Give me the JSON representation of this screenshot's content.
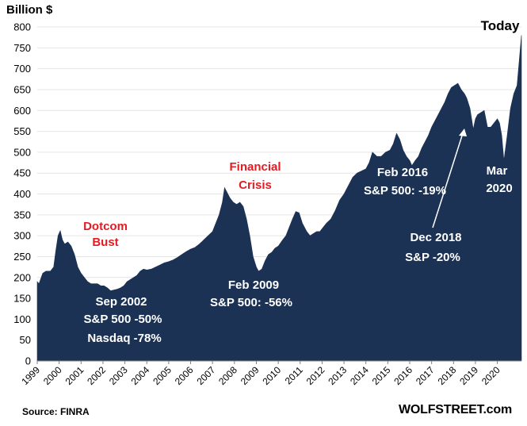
{
  "unit_label": "Billion $",
  "source": "Source: FINRA",
  "brand": "WOLFSTREET.com",
  "colors": {
    "area": "#1b3255",
    "grid": "#e4e4e4",
    "red": "#e31b23",
    "white": "#ffffff",
    "black": "#000000"
  },
  "chart_data": {
    "type": "area",
    "title": "",
    "xlabel": "",
    "ylabel": "Billion $",
    "ylim": [
      0,
      800
    ],
    "yticks": [
      0,
      50,
      100,
      150,
      200,
      250,
      300,
      350,
      400,
      450,
      500,
      550,
      600,
      650,
      700,
      750,
      800
    ],
    "xlim": [
      1999.0,
      2021.1
    ],
    "xticks": [
      "1999",
      "2000",
      "2001",
      "2002",
      "2003",
      "2004",
      "2005",
      "2006",
      "2007",
      "2008",
      "2009",
      "2010",
      "2011",
      "2012",
      "2013",
      "2014",
      "2015",
      "2016",
      "2017",
      "2018",
      "2019",
      "2020"
    ],
    "grid": true,
    "series": [
      {
        "name": "",
        "x": [
          1999.0,
          1999.08,
          1999.25,
          1999.4,
          1999.6,
          1999.75,
          1999.85,
          1999.95,
          2000.05,
          2000.15,
          2000.25,
          2000.4,
          2000.55,
          2000.7,
          2000.85,
          2001.0,
          2001.15,
          2001.3,
          2001.45,
          2001.6,
          2001.75,
          2001.9,
          2002.05,
          2002.2,
          2002.35,
          2002.5,
          2002.65,
          2002.8,
          2002.95,
          2003.1,
          2003.25,
          2003.4,
          2003.55,
          2003.7,
          2003.85,
          2004.0,
          2004.2,
          2004.4,
          2004.6,
          2004.8,
          2005.0,
          2005.2,
          2005.4,
          2005.6,
          2005.8,
          2006.0,
          2006.2,
          2006.4,
          2006.6,
          2006.8,
          2007.0,
          2007.15,
          2007.3,
          2007.45,
          2007.55,
          2007.65,
          2007.8,
          2007.95,
          2008.1,
          2008.25,
          2008.4,
          2008.55,
          2008.7,
          2008.85,
          2009.0,
          2009.1,
          2009.25,
          2009.4,
          2009.55,
          2009.7,
          2009.85,
          2010.0,
          2010.2,
          2010.35,
          2010.5,
          2010.65,
          2010.8,
          2010.95,
          2011.1,
          2011.3,
          2011.45,
          2011.6,
          2011.75,
          2011.9,
          2012.05,
          2012.2,
          2012.4,
          2012.6,
          2012.8,
          2013.0,
          2013.2,
          2013.4,
          2013.6,
          2013.8,
          2014.0,
          2014.15,
          2014.3,
          2014.5,
          2014.7,
          2014.9,
          2015.1,
          2015.25,
          2015.4,
          2015.55,
          2015.7,
          2015.85,
          2016.0,
          2016.1,
          2016.25,
          2016.4,
          2016.55,
          2016.7,
          2016.85,
          2017.0,
          2017.15,
          2017.3,
          2017.45,
          2017.6,
          2017.75,
          2017.9,
          2018.05,
          2018.2,
          2018.35,
          2018.5,
          2018.6,
          2018.75,
          2018.9,
          2019.0,
          2019.1,
          2019.25,
          2019.4,
          2019.55,
          2019.7,
          2019.85,
          2020.0,
          2020.1,
          2020.2,
          2020.3,
          2020.45,
          2020.6,
          2020.75,
          2020.9,
          2021.0,
          2021.1
        ],
        "values": [
          190,
          185,
          210,
          215,
          215,
          225,
          265,
          300,
          312,
          290,
          280,
          285,
          275,
          255,
          225,
          210,
          200,
          190,
          185,
          185,
          185,
          180,
          180,
          175,
          168,
          170,
          172,
          175,
          180,
          190,
          195,
          200,
          205,
          215,
          220,
          218,
          220,
          225,
          230,
          235,
          238,
          242,
          248,
          255,
          262,
          268,
          272,
          280,
          290,
          300,
          310,
          330,
          350,
          380,
          415,
          405,
          390,
          380,
          375,
          380,
          370,
          340,
          300,
          250,
          225,
          215,
          220,
          240,
          255,
          260,
          270,
          275,
          290,
          300,
          320,
          340,
          358,
          355,
          330,
          310,
          300,
          305,
          310,
          310,
          320,
          330,
          340,
          360,
          385,
          400,
          420,
          440,
          450,
          455,
          460,
          475,
          500,
          490,
          490,
          500,
          505,
          520,
          545,
          530,
          505,
          490,
          480,
          468,
          480,
          490,
          510,
          525,
          540,
          560,
          575,
          590,
          605,
          620,
          640,
          655,
          660,
          665,
          650,
          640,
          630,
          605,
          555,
          580,
          590,
          595,
          600,
          560,
          560,
          570,
          580,
          570,
          540,
          480,
          540,
          605,
          640,
          660,
          720,
          780
        ]
      }
    ],
    "annotations": [
      {
        "text": "Dotcom",
        "style": "red"
      },
      {
        "text": "Bust",
        "style": "red"
      },
      {
        "text": "Sep 2002",
        "style": "white"
      },
      {
        "text": "S&P 500 -50%",
        "style": "white"
      },
      {
        "text": "Nasdaq -78%",
        "style": "white"
      },
      {
        "text": "Financial",
        "style": "red"
      },
      {
        "text": "Crisis",
        "style": "red"
      },
      {
        "text": "Feb 2009",
        "style": "white"
      },
      {
        "text": "S&P 500: -56%",
        "style": "white"
      },
      {
        "text": "Feb 2016",
        "style": "white"
      },
      {
        "text": "S&P 500: -19%",
        "style": "white"
      },
      {
        "text": "Dec 2018",
        "style": "white"
      },
      {
        "text": "S&P -20%",
        "style": "white"
      },
      {
        "text": "Mar",
        "style": "white"
      },
      {
        "text": "2020",
        "style": "white"
      },
      {
        "text": "Today",
        "style": "black"
      }
    ]
  }
}
